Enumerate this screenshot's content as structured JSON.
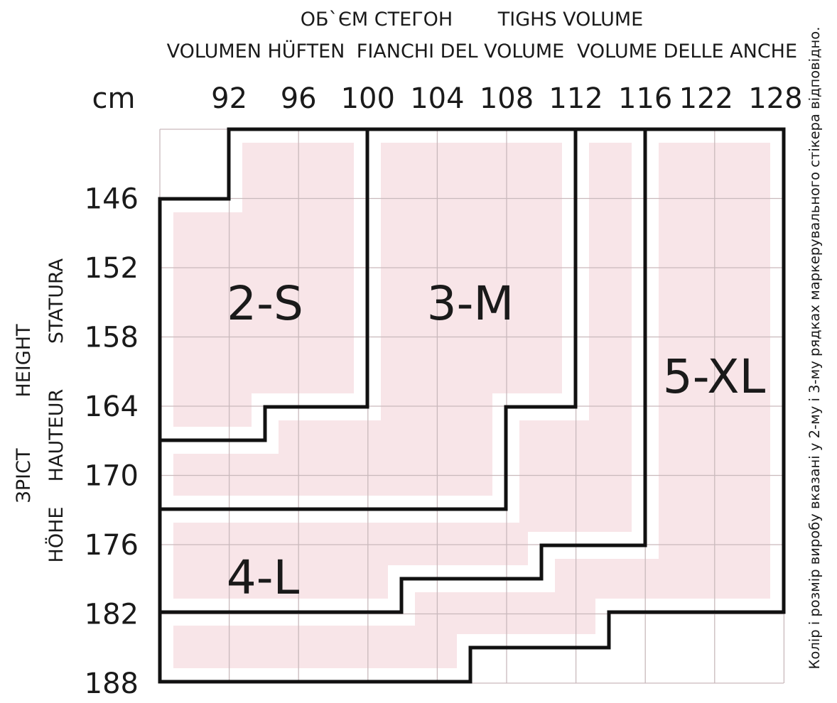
{
  "header": {
    "hip_title_ua": "ОБ`ЄМ СТЕГОН",
    "hip_title_en": "TIGHS VOLUME",
    "hip_title_de": "VOLUMEN HÜFTEN",
    "hip_title_it": "FIANCHI DEL VOLUME",
    "hip_title_fr": "VOLUME DELLE ANCHE",
    "unit": "cm"
  },
  "height_titles": {
    "ua": "ЗРІСТ",
    "en": "HEIGHT",
    "de": "HÖHE",
    "fr": "HAUTEUR",
    "it": "STATURA"
  },
  "hip_values": [
    "92",
    "96",
    "100",
    "104",
    "108",
    "112",
    "116",
    "122",
    "128"
  ],
  "height_values": [
    "146",
    "152",
    "158",
    "164",
    "170",
    "176",
    "182",
    "188"
  ],
  "sizes": [
    "2-S",
    "3-M",
    "4-L",
    "5-XL"
  ],
  "note": "Колір і розмір виробу вказані у 2-му і 3-му рядках маркерувального стікера відповідно."
}
